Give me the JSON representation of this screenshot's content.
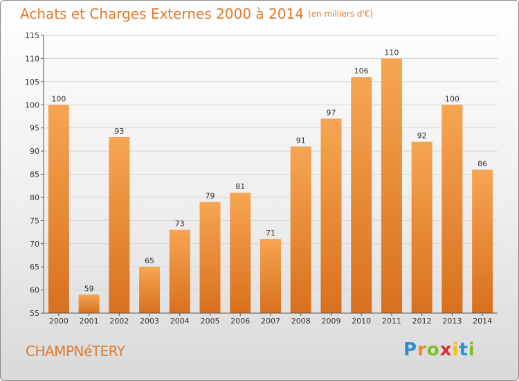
{
  "title": "Achats et Charges Externes 2000 à 2014",
  "unit": "(en milliers d'€)",
  "commune": "CHAMPNéTERY",
  "logo": {
    "text": "Proxiti",
    "letters": [
      {
        "ch": "P",
        "color": "#2a8fd6"
      },
      {
        "ch": "r",
        "color": "#ef8a1a"
      },
      {
        "ch": "o",
        "color": "#7bbf2a"
      },
      {
        "ch": "x",
        "color": "#d62f2f"
      },
      {
        "ch": "i",
        "color": "#f2c10f"
      },
      {
        "ch": "t",
        "color": "#2a8fd6"
      },
      {
        "ch": "i",
        "color": "#7bbf2a"
      }
    ]
  },
  "chart_data": {
    "type": "bar",
    "categories": [
      "2000",
      "2001",
      "2002",
      "2003",
      "2004",
      "2005",
      "2006",
      "2007",
      "2008",
      "2009",
      "2010",
      "2011",
      "2012",
      "2013",
      "2014"
    ],
    "values": [
      100,
      59,
      93,
      65,
      73,
      79,
      81,
      71,
      91,
      97,
      106,
      110,
      92,
      100,
      86
    ],
    "ylim": [
      55,
      115
    ],
    "yticks": [
      55,
      60,
      65,
      70,
      75,
      80,
      85,
      90,
      95,
      100,
      105,
      110,
      115
    ],
    "grid": true,
    "bar_color_top": "#f7a552",
    "bar_color_bottom": "#d8701e"
  }
}
